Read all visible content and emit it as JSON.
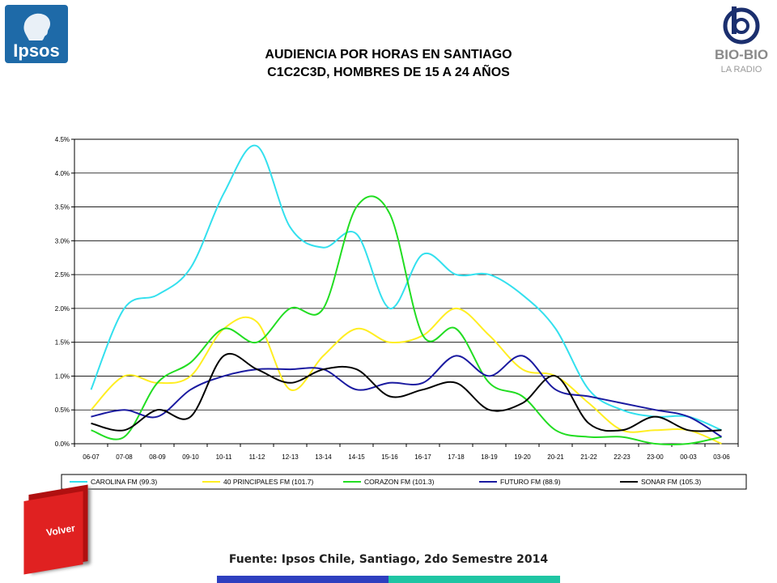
{
  "header": {
    "title_line1": "AUDIENCIA POR HORAS EN SANTIAGO",
    "title_line2": "C1C2C3D, HOMBRES DE 15 A 24 AÑOS"
  },
  "logos": {
    "ipsos": "Ipsos",
    "biobio_name": "BIO-BIO",
    "biobio_sub": "LA RADIO"
  },
  "footer": {
    "source": "Fuente: Ipsos Chile, Santiago, 2do Semestre 2014",
    "volver_label": "Volver"
  },
  "colors": {
    "carolina": "#33e0ee",
    "principales": "#ffee22",
    "corazon": "#22dd22",
    "futuro": "#1a1aa0",
    "sonar": "#000000",
    "bar_blue": "#2e3fbf",
    "bar_teal": "#1fc5a3"
  },
  "chart_data": {
    "type": "line",
    "title": "",
    "xlabel": "",
    "ylabel": "",
    "ylim": [
      0,
      4.5
    ],
    "y_ticks": [
      "0.0%",
      "0.5%",
      "1.0%",
      "1.5%",
      "2.0%",
      "2.5%",
      "3.0%",
      "3.5%",
      "4.0%",
      "4.5%"
    ],
    "grid": true,
    "legend_position": "bottom",
    "categories": [
      "06-07",
      "07-08",
      "08-09",
      "09-10",
      "10-11",
      "11-12",
      "12-13",
      "13-14",
      "14-15",
      "15-16",
      "16-17",
      "17-18",
      "18-19",
      "19-20",
      "20-21",
      "21-22",
      "22-23",
      "23-00",
      "00-03",
      "03-06"
    ],
    "series": [
      {
        "name": "CAROLINA FM (99.3)",
        "color": "#33e0ee",
        "values": [
          0.8,
          2.0,
          2.2,
          2.6,
          3.7,
          4.4,
          3.2,
          2.9,
          3.1,
          2.0,
          2.8,
          2.5,
          2.5,
          2.2,
          1.7,
          0.8,
          0.5,
          0.4,
          0.4,
          0.2
        ]
      },
      {
        "name": "40 PRINCIPALES FM (101.7)",
        "color": "#ffee22",
        "values": [
          0.5,
          1.0,
          0.9,
          1.0,
          1.7,
          1.8,
          0.8,
          1.3,
          1.7,
          1.5,
          1.6,
          2.0,
          1.6,
          1.1,
          1.0,
          0.6,
          0.2,
          0.2,
          0.2,
          0.0
        ]
      },
      {
        "name": "CORAZON FM (101.3)",
        "color": "#22dd22",
        "values": [
          0.2,
          0.1,
          0.9,
          1.2,
          1.7,
          1.5,
          2.0,
          2.0,
          3.5,
          3.4,
          1.6,
          1.7,
          0.9,
          0.7,
          0.2,
          0.1,
          0.1,
          0.0,
          0.0,
          0.1
        ]
      },
      {
        "name": "FUTURO FM (88.9)",
        "color": "#1a1aa0",
        "values": [
          0.4,
          0.5,
          0.4,
          0.8,
          1.0,
          1.1,
          1.1,
          1.1,
          0.8,
          0.9,
          0.9,
          1.3,
          1.0,
          1.3,
          0.8,
          0.7,
          0.6,
          0.5,
          0.4,
          0.1
        ]
      },
      {
        "name": "SONAR FM (105.3)",
        "color": "#000000",
        "values": [
          0.3,
          0.2,
          0.5,
          0.4,
          1.3,
          1.1,
          0.9,
          1.1,
          1.1,
          0.7,
          0.8,
          0.9,
          0.5,
          0.6,
          1.0,
          0.3,
          0.2,
          0.4,
          0.2,
          0.2
        ]
      }
    ]
  }
}
